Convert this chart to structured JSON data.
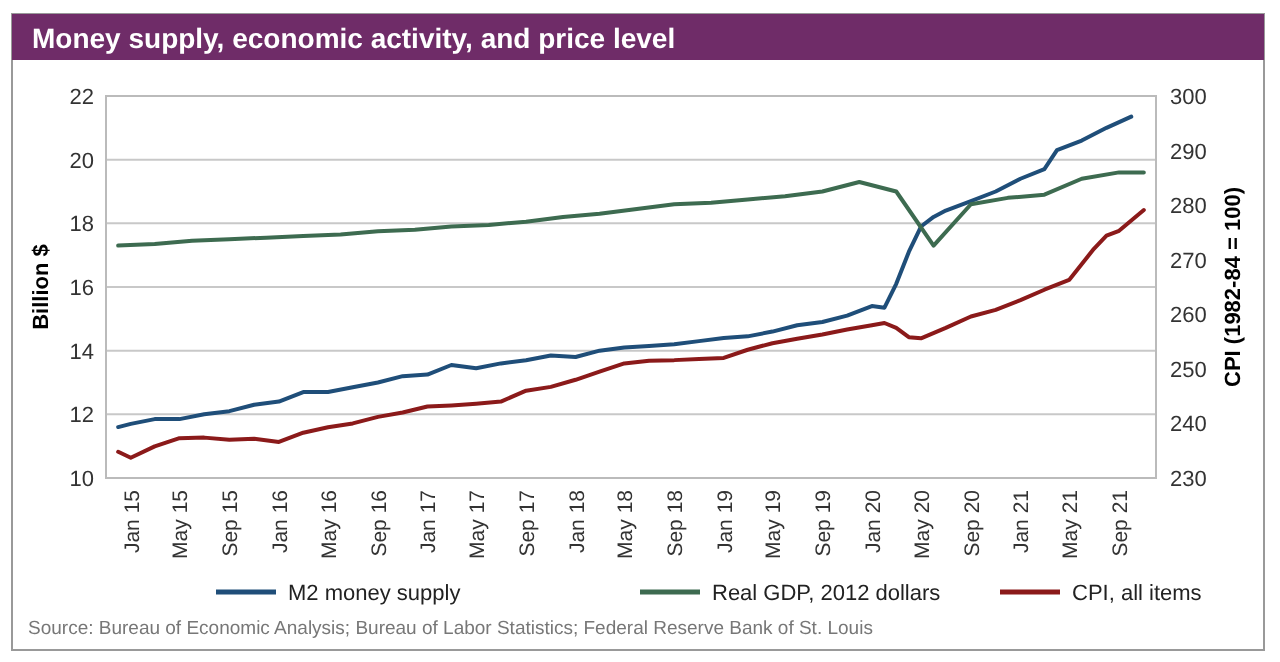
{
  "chart_data": {
    "type": "line",
    "title": "Money supply, economic activity, and price level",
    "ylabel": "Billion $",
    "y2label": "CPI (1982-84 = 100)",
    "annotations": [
      "Source: Bureau of Economic Analysis; Bureau of Labor Statistics; Federal Reserve Bank of St. Louis"
    ],
    "xlim": [
      "2014-11",
      "2021-12"
    ],
    "xticks": [
      {
        "value": "2015-01",
        "label": "Jan 15"
      },
      {
        "value": "2015-05",
        "label": "May 15"
      },
      {
        "value": "2015-09",
        "label": "Sep 15"
      },
      {
        "value": "2016-01",
        "label": "Jan 16"
      },
      {
        "value": "2016-05",
        "label": "May 16"
      },
      {
        "value": "2016-09",
        "label": "Sep 16"
      },
      {
        "value": "2017-01",
        "label": "Jan 17"
      },
      {
        "value": "2017-05",
        "label": "May 17"
      },
      {
        "value": "2017-09",
        "label": "Sep 17"
      },
      {
        "value": "2018-01",
        "label": "Jan 18"
      },
      {
        "value": "2018-05",
        "label": "May 18"
      },
      {
        "value": "2018-09",
        "label": "Sep 18"
      },
      {
        "value": "2019-01",
        "label": "Jan 19"
      },
      {
        "value": "2019-05",
        "label": "May 19"
      },
      {
        "value": "2019-09",
        "label": "Sep 19"
      },
      {
        "value": "2020-01",
        "label": "Jan 20"
      },
      {
        "value": "2020-05",
        "label": "May 20"
      },
      {
        "value": "2020-09",
        "label": "Sep 20"
      },
      {
        "value": "2021-01",
        "label": "Jan 21"
      },
      {
        "value": "2021-05",
        "label": "May 21"
      },
      {
        "value": "2021-09",
        "label": "Sep 21"
      }
    ],
    "ylim": [
      10,
      22
    ],
    "yticks": [
      10,
      12,
      14,
      16,
      18,
      20,
      22
    ],
    "y2lim": [
      230,
      300
    ],
    "y2ticks": [
      230,
      240,
      250,
      260,
      270,
      280,
      290,
      300
    ],
    "grid": "y",
    "legend": "bottom",
    "line_style": "solid",
    "marker": "none",
    "series": [
      {
        "name": "M2 money supply",
        "color": "#1f4e79",
        "x": [
          "2014-12",
          "2015-01",
          "2015-03",
          "2015-05",
          "2015-07",
          "2015-09",
          "2015-11",
          "2016-01",
          "2016-03",
          "2016-05",
          "2016-07",
          "2016-09",
          "2016-11",
          "2017-01",
          "2017-03",
          "2017-05",
          "2017-07",
          "2017-09",
          "2017-11",
          "2018-01",
          "2018-03",
          "2018-05",
          "2018-07",
          "2018-09",
          "2018-11",
          "2019-01",
          "2019-03",
          "2019-05",
          "2019-07",
          "2019-09",
          "2019-11",
          "2020-01",
          "2020-02",
          "2020-03",
          "2020-04",
          "2020-05",
          "2020-06",
          "2020-07",
          "2020-09",
          "2020-11",
          "2021-01",
          "2021-03",
          "2021-04",
          "2021-06",
          "2021-08",
          "2021-10"
        ],
        "values": [
          11.6,
          11.7,
          11.85,
          11.85,
          12.0,
          12.1,
          12.3,
          12.4,
          12.7,
          12.7,
          12.85,
          13.0,
          13.2,
          13.25,
          13.55,
          13.45,
          13.6,
          13.7,
          13.85,
          13.8,
          14.0,
          14.1,
          14.15,
          14.2,
          14.3,
          14.4,
          14.45,
          14.6,
          14.8,
          14.9,
          15.1,
          15.4,
          15.35,
          16.1,
          17.1,
          17.9,
          18.2,
          18.4,
          18.7,
          19.0,
          19.4,
          19.7,
          20.3,
          20.6,
          21.0,
          21.35
        ]
      },
      {
        "name": "Real GDP, 2012 dollars",
        "color": "#3d6b50",
        "x": [
          "2014-12",
          "2015-03",
          "2015-06",
          "2015-09",
          "2015-12",
          "2016-03",
          "2016-06",
          "2016-09",
          "2016-12",
          "2017-03",
          "2017-06",
          "2017-09",
          "2017-12",
          "2018-03",
          "2018-06",
          "2018-09",
          "2018-12",
          "2019-03",
          "2019-06",
          "2019-09",
          "2019-12",
          "2020-03",
          "2020-06",
          "2020-09",
          "2020-12",
          "2021-03",
          "2021-06",
          "2021-09",
          "2021-11"
        ],
        "values": [
          17.3,
          17.35,
          17.45,
          17.5,
          17.55,
          17.6,
          17.65,
          17.75,
          17.8,
          17.9,
          17.95,
          18.05,
          18.2,
          18.3,
          18.45,
          18.6,
          18.65,
          18.75,
          18.85,
          19.0,
          19.3,
          19.0,
          17.3,
          18.6,
          18.8,
          18.9,
          19.4,
          19.6,
          19.6
        ]
      },
      {
        "name": "CPI, all items",
        "color": "#8b1a1a",
        "axis": "y2",
        "x": [
          "2014-12",
          "2015-01",
          "2015-03",
          "2015-05",
          "2015-07",
          "2015-09",
          "2015-11",
          "2016-01",
          "2016-03",
          "2016-05",
          "2016-07",
          "2016-09",
          "2016-11",
          "2017-01",
          "2017-03",
          "2017-05",
          "2017-07",
          "2017-09",
          "2017-11",
          "2018-01",
          "2018-03",
          "2018-05",
          "2018-07",
          "2018-09",
          "2018-11",
          "2019-01",
          "2019-03",
          "2019-05",
          "2019-07",
          "2019-09",
          "2019-11",
          "2020-01",
          "2020-02",
          "2020-03",
          "2020-04",
          "2020-05",
          "2020-07",
          "2020-09",
          "2020-11",
          "2021-01",
          "2021-03",
          "2021-05",
          "2021-07",
          "2021-08",
          "2021-09",
          "2021-11"
        ],
        "values": [
          234.8,
          233.7,
          235.8,
          237.3,
          237.4,
          237.0,
          237.2,
          236.6,
          238.3,
          239.3,
          240.0,
          241.2,
          242.0,
          243.1,
          243.3,
          243.6,
          244.0,
          246.0,
          246.7,
          248.0,
          249.5,
          251.0,
          251.5,
          251.6,
          251.8,
          252.0,
          253.5,
          254.7,
          255.5,
          256.3,
          257.2,
          258.0,
          258.4,
          257.5,
          255.8,
          255.6,
          257.5,
          259.6,
          260.8,
          262.6,
          264.5,
          266.3,
          272.0,
          274.4,
          275.3,
          279.1
        ]
      }
    ]
  }
}
